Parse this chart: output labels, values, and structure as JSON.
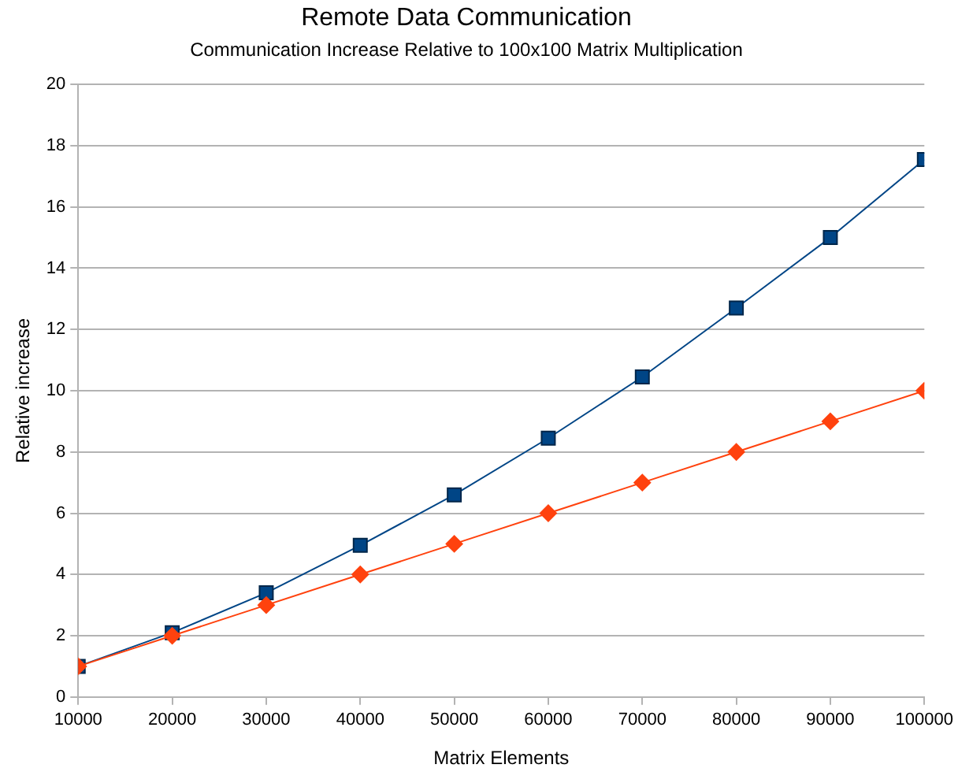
{
  "chart_data": {
    "type": "line",
    "title": "Remote Data Communication",
    "subtitle": "Communication Increase Relative to 100x100 Matrix Multiplication",
    "xlabel": "Matrix Elements",
    "ylabel": "Relative increase",
    "x": [
      10000,
      20000,
      30000,
      40000,
      50000,
      60000,
      70000,
      80000,
      90000,
      100000
    ],
    "xlim": [
      10000,
      100000
    ],
    "xticks": [
      10000,
      20000,
      30000,
      40000,
      50000,
      60000,
      70000,
      80000,
      90000,
      100000
    ],
    "ylim": [
      0,
      20
    ],
    "yticks": [
      0,
      2,
      4,
      6,
      8,
      10,
      12,
      14,
      16,
      18,
      20
    ],
    "grid": "y",
    "legend": false,
    "line_style": "solid",
    "series": [
      {
        "color": "#004586",
        "marker": "square",
        "values": [
          1,
          2.1,
          3.4,
          4.95,
          6.6,
          8.45,
          10.45,
          12.7,
          15,
          17.55
        ]
      },
      {
        "color": "#ff420e",
        "marker": "diamond",
        "values": [
          1,
          2,
          3,
          4,
          5,
          6,
          7,
          8,
          9,
          10
        ]
      }
    ]
  }
}
